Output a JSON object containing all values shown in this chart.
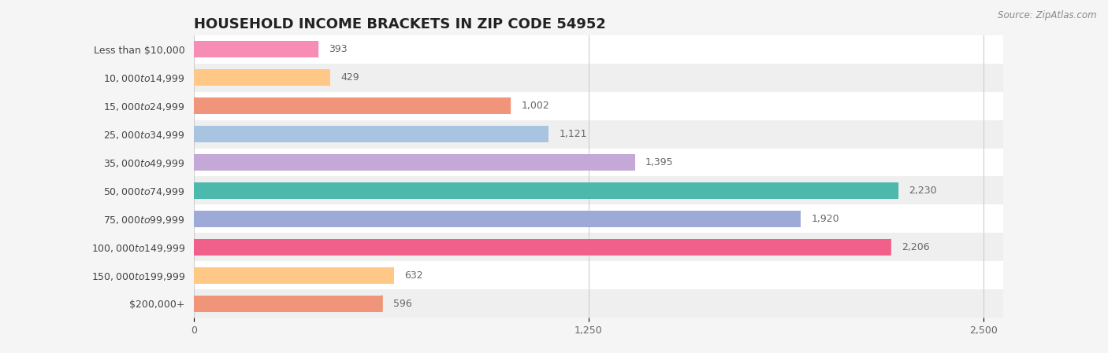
{
  "title": "HOUSEHOLD INCOME BRACKETS IN ZIP CODE 54952",
  "source": "Source: ZipAtlas.com",
  "categories": [
    "Less than $10,000",
    "$10,000 to $14,999",
    "$15,000 to $24,999",
    "$25,000 to $34,999",
    "$35,000 to $49,999",
    "$50,000 to $74,999",
    "$75,000 to $99,999",
    "$100,000 to $149,999",
    "$150,000 to $199,999",
    "$200,000+"
  ],
  "values": [
    393,
    429,
    1002,
    1121,
    1395,
    2230,
    1920,
    2206,
    632,
    596
  ],
  "bar_colors": [
    "#f78db5",
    "#ffc887",
    "#f0957a",
    "#a8c4e0",
    "#c4a8d8",
    "#4db8ac",
    "#9daad8",
    "#f0608a",
    "#ffc887",
    "#f0957a"
  ],
  "background_color": "#f5f5f5",
  "row_bg_light": "#ffffff",
  "row_bg_dark": "#efefef",
  "xlim_max": 2500,
  "xticks": [
    0,
    1250,
    2500
  ],
  "title_fontsize": 13,
  "label_fontsize": 9,
  "value_fontsize": 9,
  "source_fontsize": 8.5
}
